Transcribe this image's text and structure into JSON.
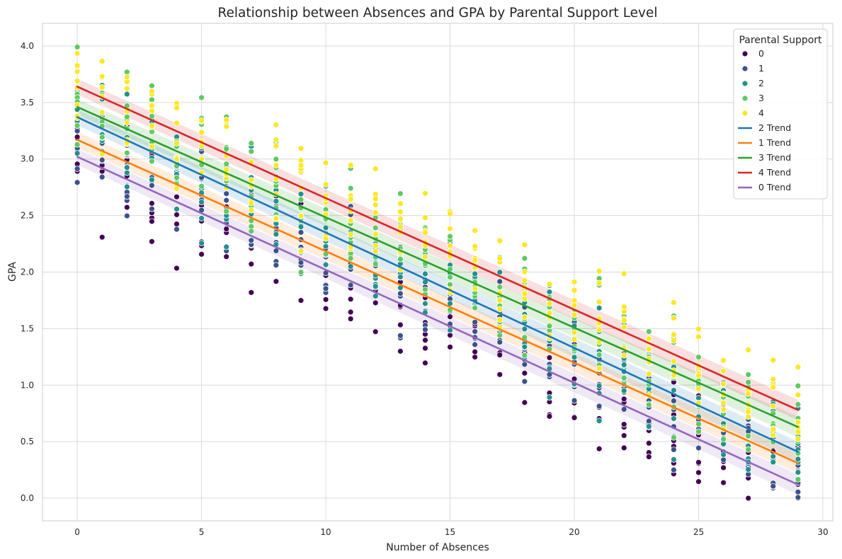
{
  "chart_data": {
    "type": "scatter",
    "title": "Relationship between Absences and GPA by Parental Support Level",
    "xlabel": "Number of Absences",
    "ylabel": "GPA",
    "xlim": [
      -1.4,
      30.4
    ],
    "ylim": [
      -0.2,
      4.2
    ],
    "xticks": [
      0,
      5,
      10,
      15,
      20,
      25,
      30
    ],
    "yticks": [
      0.0,
      0.5,
      1.0,
      1.5,
      2.0,
      2.5,
      3.0,
      3.5,
      4.0
    ],
    "xtick_labels": [
      "0",
      "5",
      "10",
      "15",
      "20",
      "25",
      "30"
    ],
    "ytick_labels": [
      "0.0",
      "0.5",
      "1.0",
      "1.5",
      "2.0",
      "2.5",
      "3.0",
      "3.5",
      "4.0"
    ],
    "grid": true,
    "legend": {
      "title": "Parental Support",
      "placement": "top-right"
    },
    "series": [
      {
        "name": "0",
        "color": "#440154",
        "level": 0
      },
      {
        "name": "1",
        "color": "#3b528b",
        "level": 1
      },
      {
        "name": "2",
        "color": "#21918c",
        "level": 2
      },
      {
        "name": "3",
        "color": "#5ec962",
        "level": 3
      },
      {
        "name": "4",
        "color": "#fde725",
        "level": 4
      }
    ],
    "trend_lines": [
      {
        "name": "2 Trend",
        "color": "#1f77b4",
        "x": [
          0,
          29
        ],
        "y": [
          3.37,
          0.41
        ]
      },
      {
        "name": "1 Trend",
        "color": "#ff7f0e",
        "x": [
          0,
          29
        ],
        "y": [
          3.17,
          0.31
        ]
      },
      {
        "name": "3 Trend",
        "color": "#2ca02c",
        "x": [
          0,
          29
        ],
        "y": [
          3.46,
          0.63
        ]
      },
      {
        "name": "4 Trend",
        "color": "#d62728",
        "x": [
          0,
          29
        ],
        "y": [
          3.64,
          0.78
        ]
      },
      {
        "name": "0 Trend",
        "color": "#9467bd",
        "x": [
          0,
          29
        ],
        "y": [
          3.02,
          0.12
        ]
      }
    ],
    "absence_values": [
      0,
      1,
      2,
      3,
      4,
      5,
      6,
      7,
      8,
      9,
      10,
      11,
      12,
      13,
      14,
      15,
      16,
      17,
      18,
      19,
      20,
      21,
      22,
      23,
      24,
      25,
      26,
      27,
      28,
      29
    ],
    "points_per_group": 8,
    "gpa_spread": 0.42
  }
}
